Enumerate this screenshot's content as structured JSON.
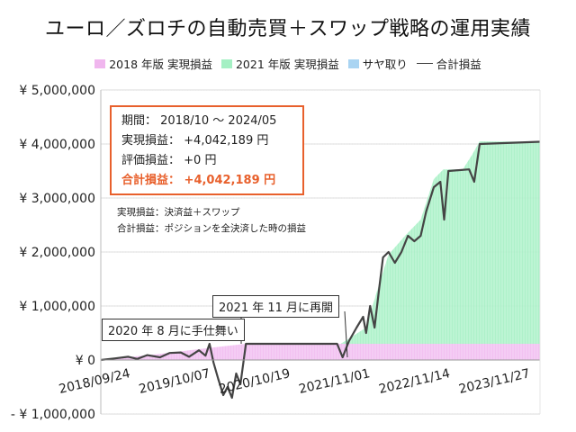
{
  "title": "ユーロ／ズロチの自動売買＋スワップ戦略の運用実績",
  "legend": [
    {
      "label": "2018 年版 実現損益",
      "color": "#f0b6ee",
      "kind": "box"
    },
    {
      "label": "2021 年版 実現損益",
      "color": "#a5f0c4",
      "kind": "box"
    },
    {
      "label": "サヤ取り",
      "color": "#a9d4f2",
      "kind": "box"
    },
    {
      "label": "合計損益",
      "color": "#444444",
      "kind": "line"
    }
  ],
  "info": {
    "period_label": "期間：",
    "period_value": "2018/10 〜 2024/05",
    "realized_label": "実現損益：",
    "realized_value": "+4,042,189 円",
    "unrealized_label": "評価損益：",
    "unrealized_value": "+0 円",
    "total_label": "合計損益：",
    "total_value": "+4,042,189 円"
  },
  "notes": [
    "実現損益：決済益＋スワップ",
    "合計損益：ポジションを全決済した時の損益"
  ],
  "callouts": {
    "restart": "2021 年 11 月に再開",
    "close_out": "2020 年 8 月に手仕舞い"
  },
  "chart_data": {
    "type": "area",
    "title": "ユーロ／ズロチの自動売買＋スワップ戦略の運用実績",
    "x_axis": {
      "type": "date",
      "range": [
        "2018-09-24",
        "2024-05-31"
      ],
      "tick_labels": [
        "2018/09/24",
        "2019/10/07",
        "2020/10/19",
        "2021/11/01",
        "2022/11/14",
        "2023/11/27"
      ],
      "tick_dates": [
        "2018-09-24",
        "2019-10-07",
        "2020-10-19",
        "2021-11-01",
        "2022-11-14",
        "2023-11-27"
      ]
    },
    "y_axis": {
      "range": [
        -1000000,
        5000000
      ],
      "tick_values": [
        -1000000,
        0,
        1000000,
        2000000,
        3000000,
        4000000,
        5000000
      ],
      "tick_labels": [
        "- ¥ 1,000,000",
        "¥ 0",
        "¥ 1,000,000",
        "¥ 2,000,000",
        "¥ 3,000,000",
        "¥ 4,000,000",
        "¥ 5,000,000"
      ]
    },
    "grid": "horizontal",
    "legend_position": "top",
    "series": [
      {
        "name": "2018 年版 実現損益",
        "style": "area",
        "color": "#f0b6ee",
        "points": [
          [
            "2018-09-24",
            0
          ],
          [
            "2019-01-15",
            50000
          ],
          [
            "2019-06-01",
            100000
          ],
          [
            "2019-10-07",
            160000
          ],
          [
            "2020-03-01",
            230000
          ],
          [
            "2020-08-10",
            300000
          ],
          [
            "2024-05-31",
            300000
          ]
        ]
      },
      {
        "name": "2021 年版 実現損益",
        "style": "area",
        "color": "#a5f0c4",
        "stacked_on": "2018 年版 実現損益",
        "points": [
          [
            "2021-11-01",
            0
          ],
          [
            "2022-03-01",
            300000
          ],
          [
            "2022-05-01",
            1100000
          ],
          [
            "2022-06-15",
            1650000
          ],
          [
            "2022-09-01",
            2000000
          ],
          [
            "2022-11-14",
            2300000
          ],
          [
            "2023-01-15",
            3050000
          ],
          [
            "2023-03-01",
            3230000
          ],
          [
            "2023-06-01",
            3230000
          ],
          [
            "2023-07-15",
            3500000
          ],
          [
            "2023-08-20",
            3750000
          ],
          [
            "2024-05-31",
            3742189
          ]
        ]
      },
      {
        "name": "サヤ取り",
        "style": "area",
        "color": "#a9d4f2",
        "points": []
      },
      {
        "name": "合計損益",
        "style": "line",
        "color": "#444444",
        "points": [
          [
            "2018-09-24",
            0
          ],
          [
            "2018-12-01",
            30000
          ],
          [
            "2019-02-01",
            60000
          ],
          [
            "2019-03-15",
            20000
          ],
          [
            "2019-05-01",
            90000
          ],
          [
            "2019-07-01",
            50000
          ],
          [
            "2019-08-15",
            130000
          ],
          [
            "2019-10-07",
            140000
          ],
          [
            "2019-11-15",
            60000
          ],
          [
            "2020-01-01",
            180000
          ],
          [
            "2020-02-01",
            80000
          ],
          [
            "2020-02-20",
            300000
          ],
          [
            "2020-03-10",
            -50000
          ],
          [
            "2020-04-01",
            -350000
          ],
          [
            "2020-04-25",
            -650000
          ],
          [
            "2020-05-15",
            -500000
          ],
          [
            "2020-06-05",
            -700000
          ],
          [
            "2020-06-25",
            -250000
          ],
          [
            "2020-07-15",
            -450000
          ],
          [
            "2020-08-10",
            300000
          ],
          [
            "2021-10-15",
            300000
          ],
          [
            "2021-11-10",
            50000
          ],
          [
            "2021-12-10",
            350000
          ],
          [
            "2022-01-15",
            600000
          ],
          [
            "2022-02-15",
            800000
          ],
          [
            "2022-03-01",
            500000
          ],
          [
            "2022-03-20",
            1000000
          ],
          [
            "2022-04-10",
            600000
          ],
          [
            "2022-05-01",
            1300000
          ],
          [
            "2022-05-20",
            1900000
          ],
          [
            "2022-06-15",
            2000000
          ],
          [
            "2022-07-15",
            1800000
          ],
          [
            "2022-08-15",
            2000000
          ],
          [
            "2022-09-15",
            2300000
          ],
          [
            "2022-10-15",
            2200000
          ],
          [
            "2022-11-14",
            2300000
          ],
          [
            "2022-12-10",
            2750000
          ],
          [
            "2023-01-15",
            3200000
          ],
          [
            "2023-02-15",
            3300000
          ],
          [
            "2023-03-05",
            2600000
          ],
          [
            "2023-03-25",
            3500000
          ],
          [
            "2023-07-01",
            3530000
          ],
          [
            "2023-07-25",
            3300000
          ],
          [
            "2023-08-20",
            4000000
          ],
          [
            "2024-05-31",
            4042189
          ]
        ]
      }
    ]
  }
}
